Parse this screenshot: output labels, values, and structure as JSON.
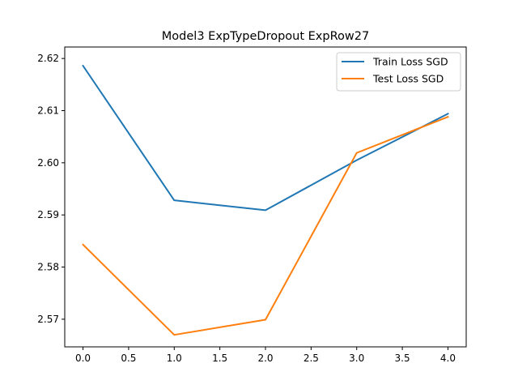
{
  "chart_data": {
    "type": "line",
    "title": "Model3 ExpTypeDropout ExpRow27",
    "xlabel": "",
    "ylabel": "",
    "x": [
      0,
      1,
      2,
      3,
      4
    ],
    "xlim": [
      -0.2,
      4.2
    ],
    "ylim": [
      2.5647,
      2.6222
    ],
    "xticks": [
      "0.0",
      "0.5",
      "1.0",
      "1.5",
      "2.0",
      "2.5",
      "3.0",
      "3.5",
      "4.0"
    ],
    "yticks": [
      "2.57",
      "2.58",
      "2.59",
      "2.60",
      "2.61",
      "2.62"
    ],
    "grid": false,
    "legend_position": "upper right",
    "series": [
      {
        "name": "Train Loss SGD",
        "color": "#1f77b4",
        "values": [
          2.6186,
          2.5928,
          2.5909,
          2.6005,
          2.6094
        ]
      },
      {
        "name": "Test Loss SGD",
        "color": "#ff7f0e",
        "values": [
          2.5843,
          2.567,
          2.5699,
          2.6019,
          2.6088
        ]
      }
    ]
  }
}
